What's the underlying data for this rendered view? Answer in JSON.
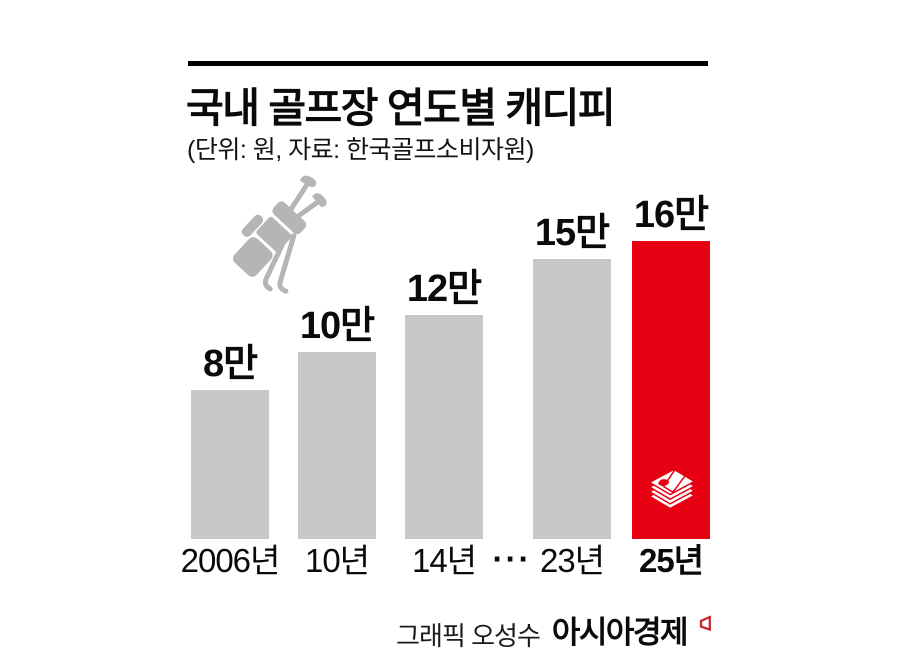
{
  "header": {
    "title": "국내 골프장 연도별 캐디피",
    "subtitle": "(단위: 원, 자료: 한국골프소비자원)"
  },
  "chart_data": {
    "type": "bar",
    "title": "국내 골프장 연도별 캐디피",
    "unit": "원",
    "source": "한국골프소비자원",
    "unit_source_note": "(단위: 원, 자료: 한국골프소비자원)",
    "categories": [
      "2006년",
      "10년",
      "14년",
      "23년",
      "25년"
    ],
    "values": [
      80000,
      100000,
      120000,
      150000,
      160000
    ],
    "value_labels": [
      "8만",
      "10만",
      "12만",
      "15만",
      "16만"
    ],
    "gap_ellipsis": "···",
    "gap_after_category_index": 2,
    "highlight_index": 4,
    "bar_color": "#c8c8c8",
    "highlight_color": "#e60012",
    "ylim": [
      0,
      160000
    ],
    "grid": false,
    "legend": false
  },
  "icons": {
    "golf_bag": "golf-bag-icon",
    "money_stack": "money-stack-icon",
    "brand_mark": "brand-mark-icon",
    "icon_gray": "#b5b5b5",
    "accent_red": "#e60012",
    "mark_red": "#c8242b"
  },
  "footer": {
    "credit": "그래픽 오성수",
    "brand": "아시아경제"
  }
}
